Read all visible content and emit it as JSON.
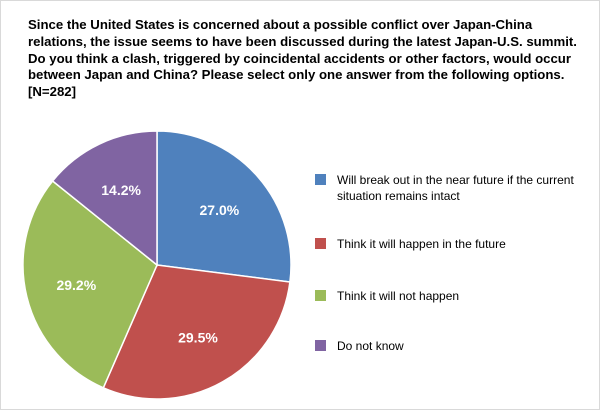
{
  "chart_data": {
    "type": "pie",
    "title": "Since the United States is concerned about a possible conflict over Japan-China relations, the issue seems to have been discussed during the latest Japan-U.S. summit. Do you think a clash, triggered by coincidental accidents or other factors, would occur between Japan and China? Please select only one answer from the following options. [N=282]",
    "slices": [
      {
        "label": "Will break out in the near future if the current situation remains intact",
        "value": 27.0,
        "display": "27.0%",
        "color": "#4f81bd"
      },
      {
        "label": "Think it will happen in the future",
        "value": 29.5,
        "display": "29.5%",
        "color": "#c0504d"
      },
      {
        "label": "Think it will not happen",
        "value": 29.2,
        "display": "29.2%",
        "color": "#9bbb59"
      },
      {
        "label": "Do not know",
        "value": 14.2,
        "display": "14.2%",
        "color": "#8064a2"
      }
    ],
    "legend_position": "right",
    "start_angle": "12 o'clock",
    "direction": "clockwise"
  }
}
